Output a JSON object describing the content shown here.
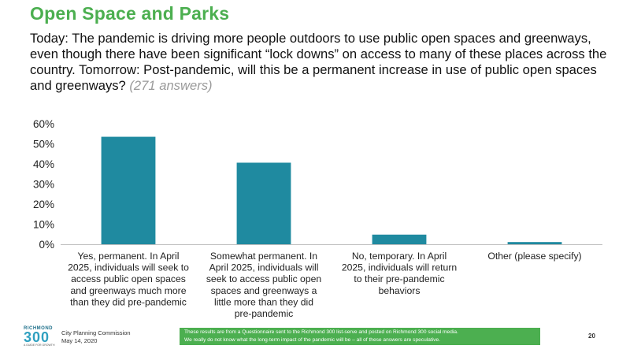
{
  "slide": {
    "title": "Open Space and Parks",
    "question": "Today: The pandemic is driving more people outdoors to use public open spaces and greenways, even though there have been significant “lock downs” on access to many of these places across the country. Tomorrow: Post-pandemic, will this be a permanent increase in use of public open spaces and greenways?",
    "answers_note": "(271 answers)"
  },
  "chart_data": {
    "type": "bar",
    "categories": [
      "Yes, permanent. In April 2025, individuals will seek to access public open spaces and greenways much more than they did pre-pandemic",
      "Somewhat permanent. In April 2025, individuals will seek to access public open spaces and greenways a little more than they did pre-pandemic",
      "No, temporary. In April 2025, individuals will return to their pre-pandemic behaviors",
      "Other (please specify)"
    ],
    "category_lines": [
      [
        "Yes, permanent. In April",
        "2025, individuals will seek to",
        "access public open spaces",
        "and greenways much more",
        "than they did pre-pandemic"
      ],
      [
        "Somewhat permanent. In",
        "April 2025, individuals will",
        "seek to access public open",
        "spaces and greenways a",
        "little more than they did",
        "pre-pandemic"
      ],
      [
        "No, temporary. In April",
        "2025, individuals will return",
        "to their pre-pandemic",
        "behaviors"
      ],
      [
        "Other (please specify)"
      ]
    ],
    "values": [
      53.5,
      40.6,
      4.8,
      1.1
    ],
    "ylim": [
      0,
      60
    ],
    "yticks": [
      0,
      10,
      20,
      30,
      40,
      50,
      60
    ],
    "ytick_labels": [
      "0%",
      "10%",
      "20%",
      "30%",
      "40%",
      "50%",
      "60%"
    ],
    "bar_color": "#1f8aa0",
    "grid": false,
    "legend": false
  },
  "footer": {
    "logo_top": "RICHMOND",
    "logo_number": "300",
    "logo_tagline": "A GUIDE FOR GROWTH",
    "org": "City Planning Commission",
    "date": "May 14, 2020",
    "note_line1": "These results are from a Questionnaire sent to the Richmond 300 list-serve and posted on Richmond 300 social media.",
    "note_line2": "We really do not know what the long-term impact of the pandemic will be – all of these answers are speculative.",
    "page_number": "20"
  },
  "colors": {
    "title": "#4caf50",
    "bar": "#1f8aa0",
    "note_background": "#4caf50"
  }
}
